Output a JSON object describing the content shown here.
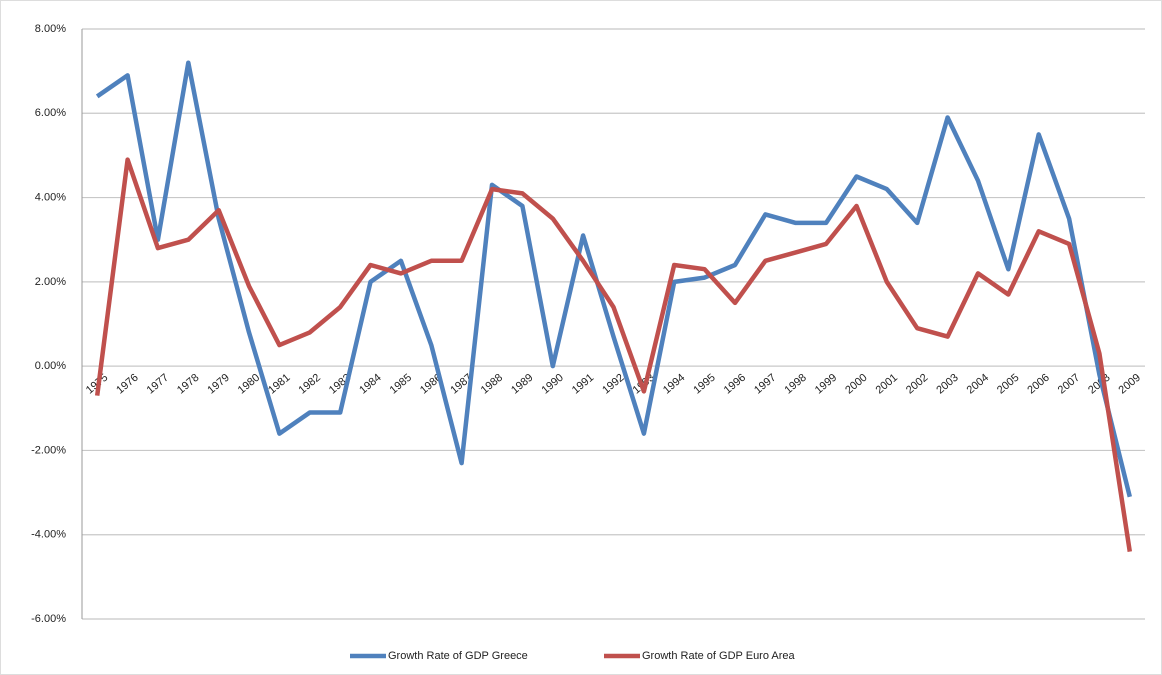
{
  "chart_data": {
    "type": "line",
    "categories": [
      "1975",
      "1976",
      "1977",
      "1978",
      "1979",
      "1980",
      "1981",
      "1982",
      "1983",
      "1984",
      "1985",
      "1986",
      "1987",
      "1988",
      "1989",
      "1990",
      "1991",
      "1992",
      "1993",
      "1994",
      "1995",
      "1996",
      "1997",
      "1998",
      "1999",
      "2000",
      "2001",
      "2002",
      "2003",
      "2004",
      "2005",
      "2006",
      "2007",
      "2008",
      "2009"
    ],
    "series": [
      {
        "name": "Growth Rate of GDP Greece",
        "color": "#4f81bd",
        "values": [
          6.4,
          6.9,
          3.0,
          7.2,
          3.5,
          0.8,
          -1.6,
          -1.1,
          -1.1,
          2.0,
          2.5,
          0.5,
          -2.3,
          4.3,
          3.8,
          0.0,
          3.1,
          0.7,
          -1.6,
          2.0,
          2.1,
          2.4,
          3.6,
          3.4,
          3.4,
          4.5,
          4.2,
          3.4,
          5.9,
          4.4,
          2.3,
          5.5,
          3.5,
          -0.2,
          -3.1
        ]
      },
      {
        "name": "Growth Rate of GDP Euro Area",
        "color": "#c0504d",
        "values": [
          -0.7,
          4.9,
          2.8,
          3.0,
          3.7,
          1.9,
          0.5,
          0.8,
          1.4,
          2.4,
          2.2,
          2.5,
          2.5,
          4.2,
          4.1,
          3.5,
          2.5,
          1.4,
          -0.6,
          2.4,
          2.3,
          1.5,
          2.5,
          2.7,
          2.9,
          3.8,
          2.0,
          0.9,
          0.7,
          2.2,
          1.7,
          3.2,
          2.9,
          0.3,
          -4.4
        ]
      }
    ],
    "ylim": [
      -6,
      8
    ],
    "yticks": [
      {
        "value": -6,
        "label": "-6.00%"
      },
      {
        "value": -4,
        "label": "-4.00%"
      },
      {
        "value": -2,
        "label": "-2.00%"
      },
      {
        "value": 0,
        "label": "0.00%"
      },
      {
        "value": 2,
        "label": "2.00%"
      },
      {
        "value": 4,
        "label": "4.00%"
      },
      {
        "value": 6,
        "label": "6.00%"
      },
      {
        "value": 8,
        "label": "8.00%"
      }
    ],
    "grid": true,
    "legend": "bottom"
  }
}
